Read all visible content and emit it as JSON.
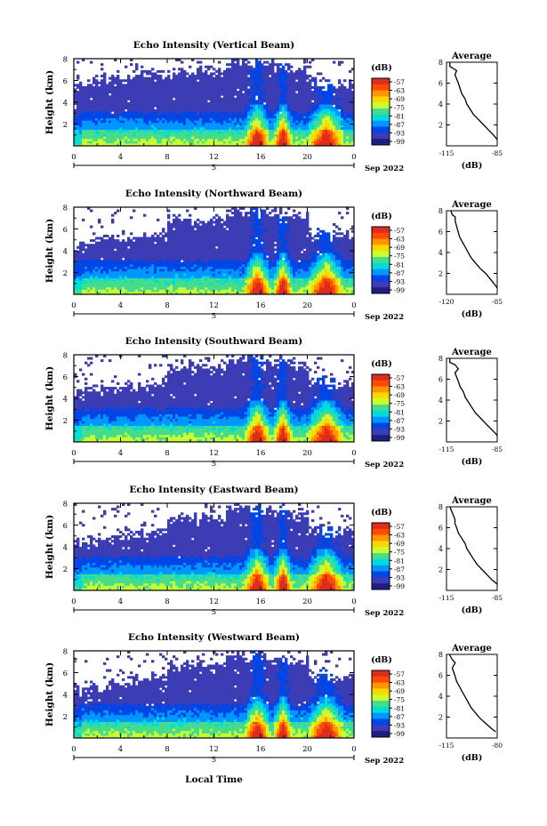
{
  "x_axis_label": "Local Time",
  "colorbar": {
    "unit": "(dB)",
    "ticks": [
      "-57",
      "-63",
      "-69",
      "-75",
      "-81",
      "-87",
      "-93",
      "-99"
    ],
    "colors": [
      "#dc2d1e",
      "#ff4b00",
      "#ff9600",
      "#ffd700",
      "#c8ff32",
      "#46dc8c",
      "#00dcdc",
      "#0096ff",
      "#0046e6",
      "#3c3cb4",
      "#1e1e82"
    ]
  },
  "chart_data": [
    {
      "type": "heatmap",
      "title": "Echo Intensity (Vertical Beam)",
      "ylabel": "Height (km)",
      "ylim": [
        0,
        8
      ],
      "yticks": [
        "8",
        "6",
        "4",
        "2"
      ],
      "xlim": [
        0,
        24
      ],
      "xticks": [
        "0",
        "4",
        "8",
        "12",
        "16",
        "20",
        "0"
      ],
      "date_labels": [
        "5",
        "Sep 2022"
      ],
      "avg_profile": {
        "title": "Average",
        "xlabel": "(dB)",
        "xticks": [
          "-115",
          "-85"
        ],
        "xlim": [
          -115,
          -85
        ],
        "yticks": [
          "8",
          "6",
          "4",
          "2"
        ],
        "points": [
          [
            -113,
            8
          ],
          [
            -113,
            7.6
          ],
          [
            -111,
            7.4
          ],
          [
            -109,
            7.2
          ],
          [
            -110,
            6.8
          ],
          [
            -109,
            6.4
          ],
          [
            -108,
            6.0
          ],
          [
            -107,
            5.5
          ],
          [
            -106,
            5.0
          ],
          [
            -104,
            4.5
          ],
          [
            -103,
            4.0
          ],
          [
            -101,
            3.5
          ],
          [
            -99,
            3.0
          ],
          [
            -96,
            2.5
          ],
          [
            -93,
            2.0
          ],
          [
            -90,
            1.5
          ],
          [
            -87,
            1.0
          ],
          [
            -85,
            0.6
          ]
        ]
      }
    },
    {
      "type": "heatmap",
      "title": "Echo Intensity (Northward Beam)",
      "ylabel": "Height (km)",
      "ylim": [
        0,
        8
      ],
      "yticks": [
        "8",
        "6",
        "4",
        "2"
      ],
      "xlim": [
        0,
        24
      ],
      "xticks": [
        "0",
        "4",
        "8",
        "12",
        "16",
        "20",
        "0"
      ],
      "date_labels": [
        "5",
        "Sep 2022"
      ],
      "avg_profile": {
        "title": "Average",
        "xlabel": "(dB)",
        "xticks": [
          "-120",
          "-85"
        ],
        "xlim": [
          -120,
          -85
        ],
        "yticks": [
          "8",
          "6",
          "4",
          "2"
        ],
        "points": [
          [
            -117,
            8
          ],
          [
            -116,
            7.6
          ],
          [
            -114,
            7.4
          ],
          [
            -114,
            7.0
          ],
          [
            -113,
            6.5
          ],
          [
            -112,
            6.0
          ],
          [
            -111,
            5.5
          ],
          [
            -109,
            5.0
          ],
          [
            -107,
            4.5
          ],
          [
            -105,
            4.0
          ],
          [
            -103,
            3.5
          ],
          [
            -100,
            3.0
          ],
          [
            -97,
            2.5
          ],
          [
            -93,
            2.0
          ],
          [
            -90,
            1.5
          ],
          [
            -87,
            1.0
          ],
          [
            -85,
            0.6
          ]
        ]
      }
    },
    {
      "type": "heatmap",
      "title": "Echo Intensity (Southward Beam)",
      "ylabel": "Height (km)",
      "ylim": [
        0,
        8
      ],
      "yticks": [
        "8",
        "6",
        "4",
        "2"
      ],
      "xlim": [
        0,
        24
      ],
      "xticks": [
        "0",
        "4",
        "8",
        "12",
        "16",
        "20",
        "0"
      ],
      "date_labels": [
        "5",
        "Sep 2022"
      ],
      "avg_profile": {
        "title": "Average",
        "xlabel": "(dB)",
        "xticks": [
          "-115",
          "-85"
        ],
        "xlim": [
          -115,
          -85
        ],
        "yticks": [
          "8",
          "6",
          "4",
          "2"
        ],
        "points": [
          [
            -113,
            8
          ],
          [
            -113,
            7.6
          ],
          [
            -110,
            7.4
          ],
          [
            -108,
            7.0
          ],
          [
            -110,
            6.6
          ],
          [
            -109,
            6.2
          ],
          [
            -108,
            5.8
          ],
          [
            -107,
            5.3
          ],
          [
            -105,
            4.8
          ],
          [
            -104,
            4.3
          ],
          [
            -102,
            3.8
          ],
          [
            -100,
            3.3
          ],
          [
            -98,
            2.8
          ],
          [
            -95,
            2.3
          ],
          [
            -92,
            1.8
          ],
          [
            -89,
            1.3
          ],
          [
            -86,
            0.8
          ],
          [
            -85,
            0.6
          ]
        ]
      }
    },
    {
      "type": "heatmap",
      "title": "Echo Intensity (Eastward Beam)",
      "ylabel": "Height (km)",
      "ylim": [
        0,
        8
      ],
      "yticks": [
        "8",
        "6",
        "4",
        "2"
      ],
      "xlim": [
        0,
        24
      ],
      "xticks": [
        "0",
        "4",
        "8",
        "12",
        "16",
        "20",
        "0"
      ],
      "date_labels": [
        "5",
        "Sep 2022"
      ],
      "avg_profile": {
        "title": "Average",
        "xlabel": "(dB)",
        "xticks": [
          "-115",
          "-85"
        ],
        "xlim": [
          -115,
          -85
        ],
        "yticks": [
          "8",
          "6",
          "4",
          "2"
        ],
        "points": [
          [
            -113,
            8
          ],
          [
            -112,
            7.6
          ],
          [
            -111,
            7.2
          ],
          [
            -110,
            6.8
          ],
          [
            -110,
            6.4
          ],
          [
            -109,
            6.0
          ],
          [
            -108,
            5.5
          ],
          [
            -106,
            5.0
          ],
          [
            -104,
            4.5
          ],
          [
            -103,
            4.0
          ],
          [
            -101,
            3.5
          ],
          [
            -99,
            3.0
          ],
          [
            -97,
            2.5
          ],
          [
            -94,
            2.0
          ],
          [
            -91,
            1.5
          ],
          [
            -88,
            1.0
          ],
          [
            -85,
            0.6
          ]
        ]
      }
    },
    {
      "type": "heatmap",
      "title": "Echo Intensity (Westward Beam)",
      "ylabel": "Height (km)",
      "ylim": [
        0,
        8
      ],
      "yticks": [
        "8",
        "6",
        "4",
        "2"
      ],
      "xlim": [
        0,
        24
      ],
      "xticks": [
        "0",
        "4",
        "8",
        "12",
        "16",
        "20",
        "0"
      ],
      "date_labels": [
        "5",
        "Sep 2022"
      ],
      "avg_profile": {
        "title": "Average",
        "xlabel": "(dB)",
        "xticks": [
          "-115",
          "-80"
        ],
        "xlim": [
          -115,
          -80
        ],
        "yticks": [
          "8",
          "6",
          "4",
          "2"
        ],
        "points": [
          [
            -113,
            8
          ],
          [
            -111,
            7.5
          ],
          [
            -109,
            7.2
          ],
          [
            -111,
            6.7
          ],
          [
            -110,
            6.3
          ],
          [
            -109,
            5.9
          ],
          [
            -108,
            5.4
          ],
          [
            -106,
            4.9
          ],
          [
            -104,
            4.4
          ],
          [
            -102,
            3.9
          ],
          [
            -100,
            3.4
          ],
          [
            -98,
            2.9
          ],
          [
            -95,
            2.4
          ],
          [
            -92,
            1.9
          ],
          [
            -88,
            1.4
          ],
          [
            -84,
            0.9
          ],
          [
            -81,
            0.6
          ]
        ]
      }
    }
  ]
}
